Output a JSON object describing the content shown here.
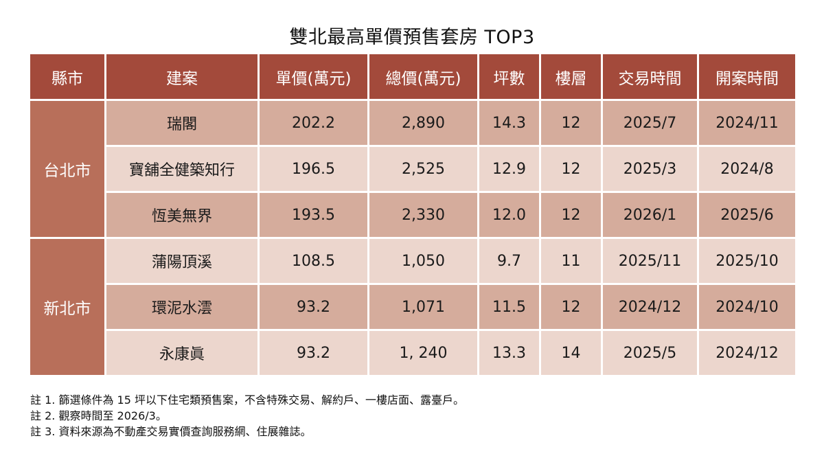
{
  "title": "雙北最高單價預售套房 TOP3",
  "headers": [
    "縣市",
    "建案",
    "單價(萬元)",
    "總價(萬元)",
    "坪數",
    "樓層",
    "交易時間",
    "開案時間"
  ],
  "groups": [
    {
      "city": "台北市",
      "rows": [
        {
          "project": "瑞閣",
          "unit_price": "202.2",
          "total_price": "2,890",
          "ping": "14.3",
          "floor": "12",
          "deal_time": "2025/7",
          "open_time": "2024/11"
        },
        {
          "project": "寶舖全健築知行",
          "unit_price": "196.5",
          "total_price": "2,525",
          "ping": "12.9",
          "floor": "12",
          "deal_time": "2025/3",
          "open_time": "2024/8"
        },
        {
          "project": "恆美無界",
          "unit_price": "193.5",
          "total_price": "2,330",
          "ping": "12.0",
          "floor": "12",
          "deal_time": "2026/1",
          "open_time": "2025/6"
        }
      ]
    },
    {
      "city": "新北市",
      "rows": [
        {
          "project": "蒲陽頂溪",
          "unit_price": "108.5",
          "total_price": "1,050",
          "ping": "9.7",
          "floor": "11",
          "deal_time": "2025/11",
          "open_time": "2025/10"
        },
        {
          "project": "環泥水澐",
          "unit_price": "93.2",
          "total_price": "1,071",
          "ping": "11.5",
          "floor": "12",
          "deal_time": "2024/12",
          "open_time": "2024/10"
        },
        {
          "project": "永康眞",
          "unit_price": "93.2",
          "total_price": "1, 240",
          "ping": "13.3",
          "floor": "14",
          "deal_time": "2025/5",
          "open_time": "2024/12"
        }
      ]
    }
  ],
  "notes": [
    "註 1. 篩選條件為 15 坪以下住宅類預售案，不含特殊交易、解約戶、一樓店面、露臺戶。",
    "註 2. 觀察時間至 2026/3。",
    "註 3. 資料來源為不動產交易實價查詢服務網、住展雜誌。"
  ],
  "colors": {
    "header_bg": "#a34a3b",
    "city_bg": "#b86f5a",
    "row_dark": "#d5ac9c",
    "row_light": "#ecd6cd"
  }
}
